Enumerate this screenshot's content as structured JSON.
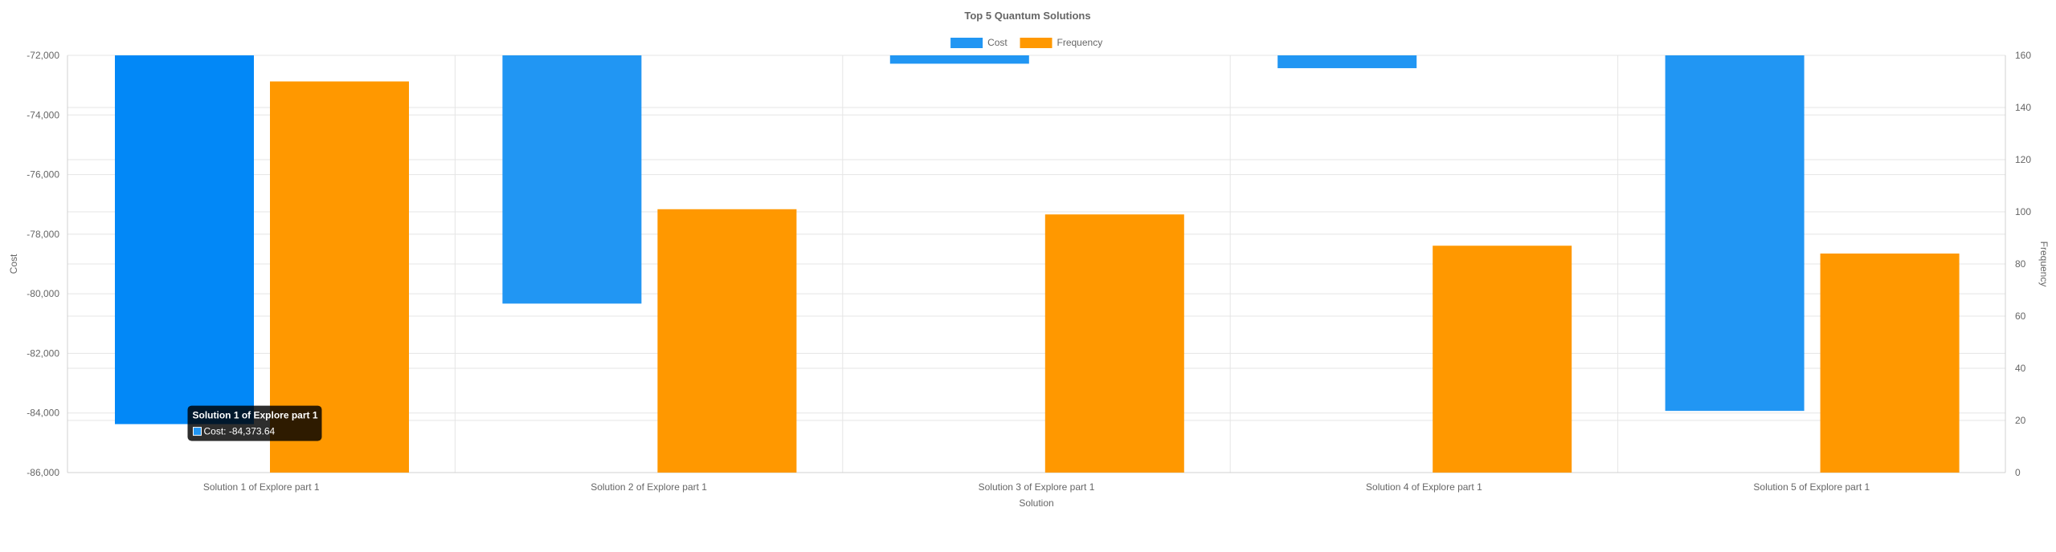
{
  "chart_data": {
    "type": "bar",
    "title": "Top 5 Quantum Solutions",
    "xlabel": "Solution",
    "ylabel": "Cost",
    "y2label": "Frequency",
    "categories": [
      "Solution 1 of Explore part 1",
      "Solution 2 of Explore part 1",
      "Solution 3 of Explore part 1",
      "Solution 4 of Explore part 1",
      "Solution 5 of Explore part 1"
    ],
    "series": [
      {
        "name": "Cost",
        "axis": "left",
        "color": "#2196f3",
        "highlight_color": "#0288f7",
        "values": [
          -84373.64,
          -80330,
          -72280,
          -72430,
          -83930
        ]
      },
      {
        "name": "Frequency",
        "axis": "right",
        "color": "#ff9800",
        "values [-84373.64, -80330, -72280, -72430, -83930]": null,
        "values": [
          150,
          101,
          99,
          87,
          84
        ]
      }
    ],
    "ylim": [
      -86000,
      -72000
    ],
    "y_ticks": [
      -72000,
      -74000,
      -76000,
      -78000,
      -80000,
      -82000,
      -84000,
      -86000
    ],
    "y_tick_labels": [
      "-72,000",
      "-74,000",
      "-76,000",
      "-78,000",
      "-80,000",
      "-82,000",
      "-84,000",
      "-86,000"
    ],
    "y2lim": [
      0,
      160
    ],
    "y2_ticks": [
      160,
      140,
      120,
      100,
      80,
      60,
      40,
      20,
      0
    ],
    "y2_tick_labels": [
      "160",
      "140",
      "120",
      "100",
      "80",
      "60",
      "40",
      "20",
      "0"
    ],
    "legend_position": "top-center",
    "grid": true,
    "tooltip": {
      "title": "Solution 1 of Explore part 1",
      "body": "Cost: -84,373.64",
      "category_index": 0,
      "series": "Cost"
    }
  }
}
